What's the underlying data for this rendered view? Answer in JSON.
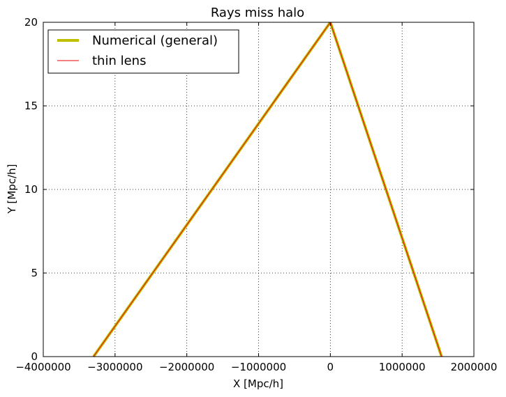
{
  "chart_data": {
    "type": "line",
    "title": "Rays miss halo",
    "xlabel": "X [Mpc/h]",
    "ylabel": "Y [Mpc/h]",
    "xlim": [
      -4000000,
      2000000
    ],
    "ylim": [
      0,
      20
    ],
    "x_ticks": [
      -4000000,
      -3000000,
      -2000000,
      -1000000,
      0,
      1000000,
      2000000
    ],
    "y_ticks": [
      0,
      5,
      10,
      15,
      20
    ],
    "x_tick_labels": [
      "−4000000",
      "−3000000",
      "−2000000",
      "−1000000",
      "0",
      "1000000",
      "2000000"
    ],
    "y_tick_labels": [
      "0",
      "5",
      "10",
      "15",
      "20"
    ],
    "grid": true,
    "legend_position": "top-left",
    "series": [
      {
        "name": "Numerical (general)",
        "color": "#bfbf00",
        "rays": [
          {
            "x": [
              -3300000,
              0
            ],
            "y": [
              0,
              20
            ]
          },
          {
            "x": [
              0,
              1550000
            ],
            "y": [
              20,
              0
            ]
          }
        ]
      },
      {
        "name": "thin lens",
        "color": "#e60000",
        "rays": [
          {
            "x": [
              -3300000,
              0
            ],
            "y": [
              0,
              20
            ]
          },
          {
            "x": [
              0,
              1550000
            ],
            "y": [
              20,
              0
            ]
          }
        ]
      }
    ]
  }
}
